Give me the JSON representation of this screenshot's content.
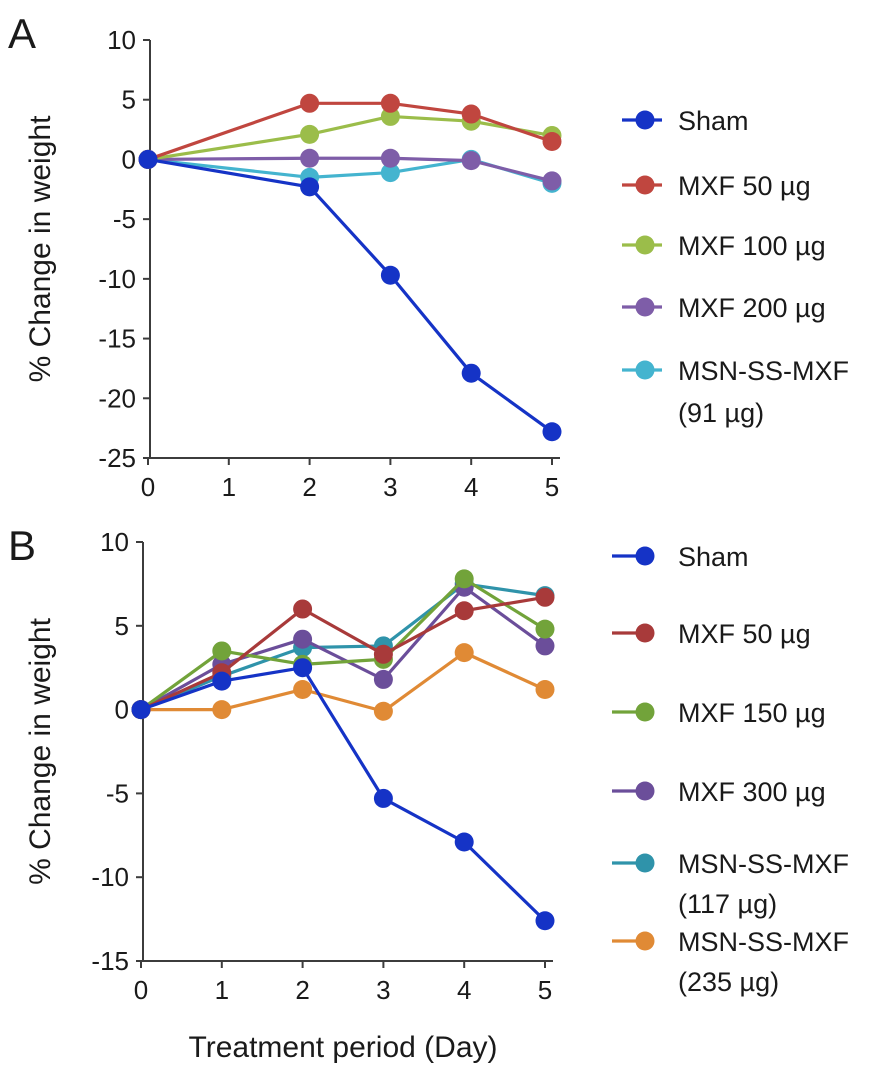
{
  "chart_data": [
    {
      "type": "line",
      "panel": "A",
      "title": "",
      "xlabel": "",
      "ylabel": "% Change in weight",
      "x": [
        0,
        1,
        2,
        3,
        4,
        5
      ],
      "xlim": [
        0,
        5
      ],
      "ylim": [
        -25,
        10
      ],
      "yticks": [
        10,
        5,
        0,
        -5,
        -10,
        -15,
        -20,
        -25
      ],
      "grid": false,
      "legend_position": "right",
      "series": [
        {
          "name": "Sham",
          "color": "#1533c6",
          "x": [
            0,
            2,
            3,
            4,
            5
          ],
          "values": [
            0,
            -2.3,
            -9.7,
            -17.9,
            -22.8
          ]
        },
        {
          "name": "MXF 50 µg",
          "color": "#c0463f",
          "x": [
            0,
            2,
            3,
            4,
            5
          ],
          "values": [
            0,
            4.7,
            4.7,
            3.8,
            1.5
          ]
        },
        {
          "name": "MXF 100 µg",
          "color": "#9bbd4a",
          "x": [
            0,
            2,
            3,
            4,
            5
          ],
          "values": [
            0,
            2.1,
            3.6,
            3.2,
            2.0
          ]
        },
        {
          "name": "MXF 200 µg",
          "color": "#7e5da8",
          "x": [
            0,
            2,
            3,
            4,
            5
          ],
          "values": [
            0,
            0.1,
            0.1,
            -0.1,
            -1.8
          ]
        },
        {
          "name_lines": [
            "MSN-SS-MXF",
            "(91 µg)"
          ],
          "color": "#44b4cf",
          "x": [
            0,
            2,
            3,
            4,
            5
          ],
          "values": [
            0,
            -1.5,
            -1.1,
            0,
            -2.0
          ]
        }
      ]
    },
    {
      "type": "line",
      "panel": "B",
      "title": "",
      "xlabel": "Treatment period (Day)",
      "ylabel": "% Change in weight",
      "x": [
        0,
        1,
        2,
        3,
        4,
        5
      ],
      "xlim": [
        0,
        5
      ],
      "ylim": [
        -15,
        10
      ],
      "yticks": [
        10,
        5,
        0,
        -5,
        -10,
        -15
      ],
      "grid": false,
      "legend_position": "right",
      "series": [
        {
          "name": "Sham",
          "color": "#1533c6",
          "x": [
            0,
            1,
            2,
            3,
            4,
            5
          ],
          "values": [
            0,
            1.7,
            2.5,
            -5.3,
            -7.9,
            -12.6
          ]
        },
        {
          "name": "MXF 50 µg",
          "color": "#a83a3a",
          "x": [
            0,
            1,
            2,
            3,
            4,
            5
          ],
          "values": [
            0,
            2.2,
            6.0,
            3.3,
            5.9,
            6.7
          ]
        },
        {
          "name": "MXF 150 µg",
          "color": "#72a33a",
          "x": [
            0,
            1,
            2,
            3,
            4,
            5
          ],
          "values": [
            0,
            3.5,
            2.7,
            3.0,
            7.8,
            4.8
          ]
        },
        {
          "name": "MXF 300 µg",
          "color": "#6b4e9a",
          "x": [
            0,
            1,
            2,
            3,
            4,
            5
          ],
          "values": [
            0,
            2.7,
            4.2,
            1.8,
            7.3,
            3.8
          ]
        },
        {
          "name_lines": [
            "MSN-SS-MXF",
            "(117 µg)"
          ],
          "color": "#2f93aa",
          "x": [
            0,
            1,
            2,
            3,
            4,
            5
          ],
          "values": [
            0,
            2.0,
            3.7,
            3.8,
            7.5,
            6.8
          ]
        },
        {
          "name_lines": [
            "MSN-SS-MXF",
            "(235 µg)"
          ],
          "color": "#e08a35",
          "x": [
            0,
            1,
            2,
            3,
            4,
            5
          ],
          "values": [
            0,
            0,
            1.2,
            -0.1,
            3.4,
            1.2
          ]
        }
      ]
    }
  ]
}
